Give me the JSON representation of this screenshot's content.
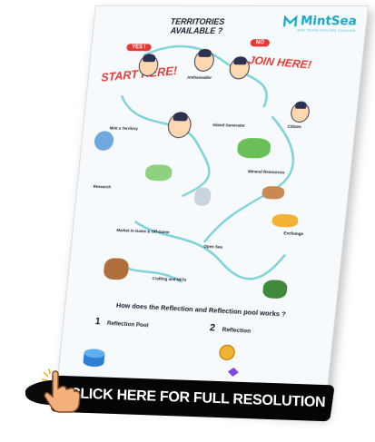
{
  "brand": {
    "name": "MintSea",
    "tagline": "MINT  TRADE  EXPLORE  CONQUER"
  },
  "headline": "TERRITORIES AVAILABLE ?",
  "badges": {
    "yes": "YES !",
    "no": "NO"
  },
  "calls": {
    "start_here": "START HERE!",
    "join_here": "JOIN HERE!"
  },
  "sections": {
    "ambassador": "Ambassador",
    "island_generator": "Island Generator",
    "citizen": "Citizen",
    "mint_territory": "Mint a Territory",
    "mineral_resources": "Mineral Resources",
    "research": "Research",
    "market_game": "Market In-Game & Off-Game",
    "open_sea": "Open Sea",
    "exchange": "Exchange",
    "crafting": "Crafting and NFTs"
  },
  "reflection": {
    "question": "How does the Reflection and Reflection pool works ?",
    "part1_num": "1",
    "part1_title": "Reflection Pool",
    "part2_num": "2",
    "part2_title": "Reflection"
  },
  "cta": {
    "label": "CLICK HERE FOR FULL RESOLUTION"
  },
  "colors": {
    "accent_red": "#e53935",
    "brand_teal": "#1aa7c9",
    "flow_teal": "#7fd3d8",
    "gold": "#f2b233",
    "banner_bg": "#050505"
  }
}
